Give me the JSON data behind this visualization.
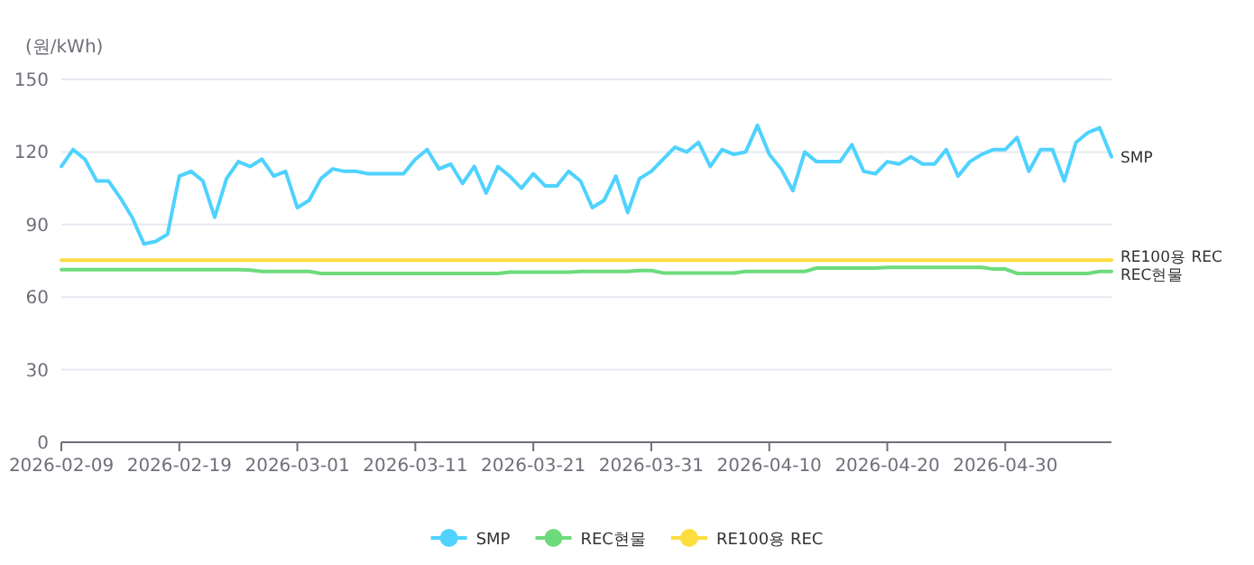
{
  "chart_data": {
    "type": "line",
    "ylabel": "(원/kWh)",
    "x": [
      "2026-02-09",
      "2026-02-10",
      "2026-02-11",
      "2026-02-12",
      "2026-02-13",
      "2026-02-14",
      "2026-02-15",
      "2026-02-16",
      "2026-02-17",
      "2026-02-18",
      "2026-02-19",
      "2026-02-20",
      "2026-02-21",
      "2026-02-22",
      "2026-02-23",
      "2026-02-24",
      "2026-02-25",
      "2026-02-26",
      "2026-02-27",
      "2026-02-28",
      "2026-03-01",
      "2026-03-02",
      "2026-03-03",
      "2026-03-04",
      "2026-03-05",
      "2026-03-06",
      "2026-03-07",
      "2026-03-08",
      "2026-03-09",
      "2026-03-10",
      "2026-03-11",
      "2026-03-12",
      "2026-03-13",
      "2026-03-14",
      "2026-03-15",
      "2026-03-16",
      "2026-03-17",
      "2026-03-18",
      "2026-03-19",
      "2026-03-20",
      "2026-03-21",
      "2026-03-22",
      "2026-03-23",
      "2026-03-24",
      "2026-03-25",
      "2026-03-26",
      "2026-03-27",
      "2026-03-28",
      "2026-03-29",
      "2026-03-30",
      "2026-03-31",
      "2026-04-01",
      "2026-04-02",
      "2026-04-03",
      "2026-04-04",
      "2026-04-05",
      "2026-04-06",
      "2026-04-07",
      "2026-04-08",
      "2026-04-09",
      "2026-04-10",
      "2026-04-11",
      "2026-04-12",
      "2026-04-13",
      "2026-04-14",
      "2026-04-15",
      "2026-04-16",
      "2026-04-17",
      "2026-04-18",
      "2026-04-19",
      "2026-04-20",
      "2026-04-21",
      "2026-04-22",
      "2026-04-23",
      "2026-04-24",
      "2026-04-25",
      "2026-04-26",
      "2026-04-27",
      "2026-04-28",
      "2026-04-29",
      "2026-04-30",
      "2026-05-01",
      "2026-05-02",
      "2026-05-03",
      "2026-05-04",
      "2026-05-05",
      "2026-05-06",
      "2026-05-07",
      "2026-05-08",
      "2026-05-09"
    ],
    "series": [
      {
        "name": "SMP",
        "color": "#4fd2ff",
        "values": [
          114,
          121,
          117,
          108,
          108,
          101,
          93,
          82,
          83,
          86,
          110,
          112,
          108,
          93,
          109,
          116,
          114,
          117,
          110,
          112,
          97,
          100,
          109,
          113,
          112,
          112,
          111,
          111,
          111,
          111,
          117,
          121,
          113,
          115,
          107,
          114,
          103,
          114,
          110,
          105,
          111,
          106,
          106,
          112,
          108,
          97,
          100,
          110,
          95,
          109,
          112,
          117,
          122,
          120,
          124,
          114,
          121,
          119,
          120,
          131,
          119,
          113,
          104,
          120,
          116,
          116,
          116,
          123,
          112,
          111,
          116,
          115,
          118,
          115,
          115,
          121,
          110,
          116,
          119,
          121,
          121,
          126,
          112,
          121,
          121,
          108,
          124,
          128,
          130,
          118
        ]
      },
      {
        "name": "REC현물",
        "color": "#6ddb7c",
        "values": [
          71.4,
          71.4,
          71.4,
          71.4,
          71.4,
          71.4,
          71.4,
          71.4,
          71.4,
          71.4,
          71.4,
          71.4,
          71.4,
          71.4,
          71.4,
          71.4,
          71.2,
          70.6,
          70.6,
          70.6,
          70.6,
          70.6,
          69.8,
          69.8,
          69.8,
          69.8,
          69.8,
          69.8,
          69.8,
          69.8,
          69.8,
          69.8,
          69.8,
          69.8,
          69.8,
          69.8,
          69.8,
          69.8,
          70.3,
          70.3,
          70.3,
          70.3,
          70.3,
          70.3,
          70.6,
          70.6,
          70.6,
          70.6,
          70.6,
          71,
          71,
          70,
          70,
          70,
          70,
          70,
          70,
          70,
          70.6,
          70.6,
          70.6,
          70.6,
          70.6,
          70.6,
          72,
          72,
          72,
          72,
          72,
          72,
          72.3,
          72.3,
          72.3,
          72.3,
          72.3,
          72.3,
          72.3,
          72.3,
          72.3,
          71.6,
          71.6,
          69.8,
          69.8,
          69.8,
          69.8,
          69.8,
          69.8,
          69.8,
          70.6,
          70.6
        ]
      },
      {
        "name": "RE100용 REC",
        "color": "#fddc3e",
        "values": [
          75.3,
          75.3,
          75.3,
          75.3,
          75.3,
          75.3,
          75.3,
          75.3,
          75.3,
          75.3,
          75.3,
          75.3,
          75.3,
          75.3,
          75.3,
          75.3,
          75.3,
          75.3,
          75.3,
          75.3,
          75.3,
          75.3,
          75.3,
          75.3,
          75.3,
          75.3,
          75.3,
          75.3,
          75.3,
          75.3,
          75.3,
          75.3,
          75.3,
          75.3,
          75.3,
          75.3,
          75.3,
          75.3,
          75.3,
          75.3,
          75.3,
          75.3,
          75.3,
          75.3,
          75.3,
          75.3,
          75.3,
          75.3,
          75.3,
          75.3,
          75.3,
          75.3,
          75.3,
          75.3,
          75.3,
          75.3,
          75.3,
          75.3,
          75.3,
          75.3,
          75.3,
          75.3,
          75.3,
          75.3,
          75.3,
          75.3,
          75.3,
          75.3,
          75.3,
          75.3,
          75.3,
          75.3,
          75.3,
          75.3,
          75.3,
          75.3,
          75.3,
          75.3,
          75.3,
          75.3,
          75.3,
          75.3,
          75.3,
          75.3,
          75.3,
          75.3,
          75.3,
          75.3,
          75.3,
          75.3
        ]
      }
    ],
    "xlim": [
      "2026-02-09",
      "2026-05-09"
    ],
    "xticks": [
      "2026-02-09",
      "2026-02-19",
      "2026-03-01",
      "2026-03-11",
      "2026-03-21",
      "2026-03-31",
      "2026-04-10",
      "2026-04-20",
      "2026-04-30"
    ],
    "ylim": [
      0,
      150
    ],
    "yticks": [
      0,
      30,
      60,
      90,
      120,
      150
    ],
    "grid": "y",
    "legend": "bottom",
    "marker": "none",
    "line_style": "solid"
  }
}
